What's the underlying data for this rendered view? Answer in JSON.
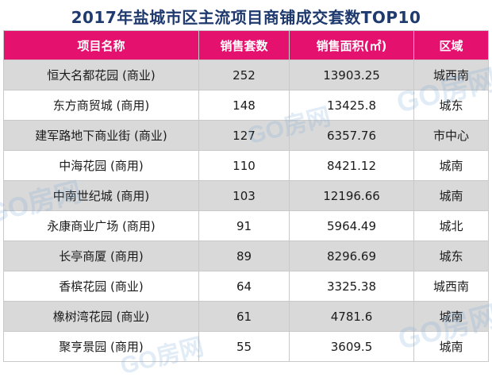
{
  "title": "2017年盐城市区主流项目商铺成交套数TOP10",
  "columns": {
    "name": "项目名称",
    "units": "销售套数",
    "area": "销售面积(㎡)",
    "region": "区域"
  },
  "rows": [
    {
      "name": "恒大名都花园 (商业)",
      "units": "252",
      "area": "13903.25",
      "region": "城西南"
    },
    {
      "name": "东方商贸城 (商用)",
      "units": "148",
      "area": "13425.8",
      "region": "城东"
    },
    {
      "name": "建军路地下商业街 (商业)",
      "units": "127",
      "area": "6357.76",
      "region": "市中心"
    },
    {
      "name": "中海花园 (商用)",
      "units": "110",
      "area": "8421.12",
      "region": "城南"
    },
    {
      "name": "中南世纪城 (商用)",
      "units": "103",
      "area": "12196.66",
      "region": "城南"
    },
    {
      "name": "永康商业广场 (商用)",
      "units": "91",
      "area": "5964.49",
      "region": "城北"
    },
    {
      "name": "长亭商厦 (商用)",
      "units": "89",
      "area": "8296.69",
      "region": "城东"
    },
    {
      "name": "香槟花园 (商业)",
      "units": "64",
      "area": "3325.38",
      "region": "城西南"
    },
    {
      "name": "橡树湾花园 (商业)",
      "units": "61",
      "area": "4781.6",
      "region": "城南"
    },
    {
      "name": "聚亨景园 (商用)",
      "units": "55",
      "area": "3609.5",
      "region": "城南"
    }
  ],
  "watermark": "GO房网",
  "colors": {
    "header_bg": "#e5116f",
    "title_text": "#1f3a6e",
    "stripe": "#d9d9d9"
  }
}
